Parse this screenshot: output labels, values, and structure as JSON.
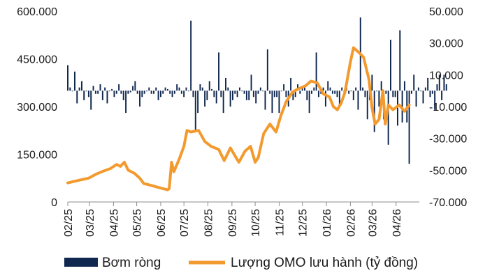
{
  "chart_data": {
    "type": "bar+line",
    "title": "",
    "xlabel": "",
    "ylabel_left": "",
    "ylabel_right": "",
    "x_ticks": [
      "02/25",
      "03/25",
      "04/25",
      "05/25",
      "06/25",
      "07/25",
      "08/25",
      "09/25",
      "10/25",
      "11/25",
      "12/25",
      "01/26",
      "02/26",
      "03/26",
      "04/26"
    ],
    "left_axis": {
      "ticks": [
        "0",
        "150.000",
        "300.000",
        "450.000",
        "600.000"
      ],
      "min": 0,
      "max": 600000
    },
    "right_axis": {
      "ticks": [
        "-70.000",
        "-50.000",
        "-30.000",
        "-10.000",
        "10.000",
        "30.000",
        "50.000"
      ],
      "min": -70000,
      "max": 50000
    },
    "legend": {
      "placement": "bottom"
    },
    "colors": {
      "bars": "#10284f",
      "line": "#f39a2e"
    },
    "series": [
      {
        "name": "Bơm ròng",
        "type": "bar",
        "axis": "right",
        "x_start": "2025-02-01",
        "step_days": 3,
        "values": [
          16000,
          2000,
          0,
          12000,
          -8000,
          2000,
          6000,
          -6000,
          0,
          -4000,
          -12000,
          3000,
          -2000,
          -2000,
          4000,
          -6000,
          2000,
          -8000,
          0,
          1000,
          -4000,
          -2000,
          4000,
          -2000,
          -6000,
          -14000,
          -2000,
          -1000,
          3000,
          6000,
          -2000,
          -10000,
          -4000,
          -2000,
          0,
          2000,
          -2000,
          -2000,
          2000,
          -6000,
          -4000,
          -2000,
          2000,
          1000,
          -2000,
          -4000,
          -2000,
          4000,
          2000,
          -2000,
          -4000,
          2000,
          0,
          44000,
          -4000,
          -26000,
          -14000,
          4000,
          2000,
          -10000,
          -6000,
          6000,
          1000,
          -4000,
          -8000,
          24000,
          -4000,
          -14000,
          8000,
          2000,
          -10000,
          -6000,
          -2000,
          -4000,
          2000,
          0,
          -2000,
          -6000,
          -6000,
          10000,
          -4000,
          -8000,
          -2000,
          2000,
          0,
          -12000,
          26000,
          -2000,
          -14000,
          -4000,
          -4000,
          -14000,
          0,
          4000,
          -4000,
          -10000,
          8000,
          -6000,
          -4000,
          4000,
          -2000,
          2000,
          2000,
          -6000,
          -14000,
          -2000,
          2000,
          24000,
          -4000,
          -2000,
          2000,
          -10000,
          6000,
          2000,
          -2000,
          -2000,
          -4000,
          -10000,
          2000,
          -4000,
          2000,
          -2000,
          0,
          -6000,
          2000,
          -12000,
          46000,
          2000,
          -4000,
          -18000,
          -6000,
          10000,
          -26000,
          0,
          -10000,
          6000,
          -18000,
          -2000,
          -34000,
          32000,
          -4000,
          -4000,
          -22000,
          38000,
          -20000,
          6000,
          -20000,
          -46000,
          -2000,
          10000,
          -10000,
          2000,
          0,
          -8000,
          2000,
          8000,
          -4000,
          -2000,
          -12000,
          4000,
          10000,
          -6000,
          10000,
          4000
        ],
        "values_display": "bars"
      },
      {
        "name": "Lượng OMO lưu hành (tỷ đồng)",
        "type": "line",
        "axis": "left",
        "points": [
          [
            "2025-02-01",
            60000
          ],
          [
            "2025-02-15",
            68000
          ],
          [
            "2025-02-28",
            75000
          ],
          [
            "2025-03-10",
            88000
          ],
          [
            "2025-03-20",
            98000
          ],
          [
            "2025-03-28",
            105000
          ],
          [
            "2025-04-05",
            118000
          ],
          [
            "2025-04-10",
            112000
          ],
          [
            "2025-04-15",
            125000
          ],
          [
            "2025-04-20",
            100000
          ],
          [
            "2025-04-28",
            90000
          ],
          [
            "2025-05-05",
            75000
          ],
          [
            "2025-05-10",
            58000
          ],
          [
            "2025-05-20",
            52000
          ],
          [
            "2025-05-30",
            45000
          ],
          [
            "2025-06-10",
            38000
          ],
          [
            "2025-06-12",
            42000
          ],
          [
            "2025-06-15",
            125000
          ],
          [
            "2025-06-18",
            95000
          ],
          [
            "2025-06-25",
            135000
          ],
          [
            "2025-07-01",
            175000
          ],
          [
            "2025-07-05",
            225000
          ],
          [
            "2025-07-10",
            220000
          ],
          [
            "2025-07-20",
            225000
          ],
          [
            "2025-07-28",
            190000
          ],
          [
            "2025-08-05",
            175000
          ],
          [
            "2025-08-15",
            165000
          ],
          [
            "2025-08-22",
            130000
          ],
          [
            "2025-08-30",
            170000
          ],
          [
            "2025-09-05",
            145000
          ],
          [
            "2025-09-10",
            125000
          ],
          [
            "2025-09-18",
            160000
          ],
          [
            "2025-09-25",
            175000
          ],
          [
            "2025-10-01",
            125000
          ],
          [
            "2025-10-05",
            140000
          ],
          [
            "2025-10-12",
            215000
          ],
          [
            "2025-10-20",
            245000
          ],
          [
            "2025-10-28",
            220000
          ],
          [
            "2025-11-03",
            270000
          ],
          [
            "2025-11-10",
            315000
          ],
          [
            "2025-11-18",
            345000
          ],
          [
            "2025-11-25",
            355000
          ],
          [
            "2025-12-05",
            365000
          ],
          [
            "2025-12-12",
            380000
          ],
          [
            "2025-12-20",
            375000
          ],
          [
            "2025-12-28",
            340000
          ],
          [
            "2026-01-05",
            330000
          ],
          [
            "2026-01-10",
            300000
          ],
          [
            "2026-01-15",
            290000
          ],
          [
            "2026-01-20",
            310000
          ],
          [
            "2026-01-25",
            345000
          ],
          [
            "2026-02-01",
            440000
          ],
          [
            "2026-02-05",
            485000
          ],
          [
            "2026-02-12",
            470000
          ],
          [
            "2026-02-18",
            455000
          ],
          [
            "2026-02-25",
            385000
          ],
          [
            "2026-03-01",
            295000
          ],
          [
            "2026-03-05",
            245000
          ],
          [
            "2026-03-10",
            260000
          ],
          [
            "2026-03-15",
            350000
          ],
          [
            "2026-03-18",
            245000
          ],
          [
            "2026-03-22",
            305000
          ],
          [
            "2026-03-28",
            290000
          ],
          [
            "2026-04-05",
            305000
          ],
          [
            "2026-04-12",
            285000
          ],
          [
            "2026-04-18",
            305000
          ]
        ]
      }
    ]
  }
}
